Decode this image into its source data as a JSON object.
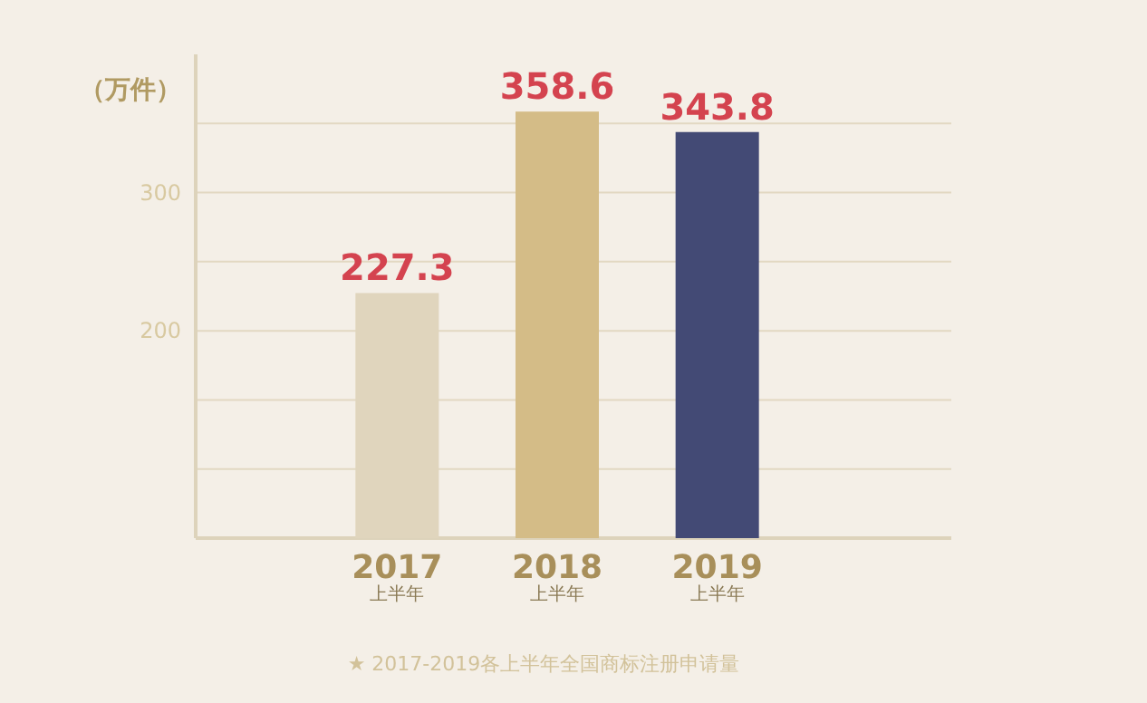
{
  "chart_data": {
    "type": "bar",
    "ylabel": "（万件）",
    "categories": [
      "2017\n上半年",
      "2018\n上半年",
      "2019\n上半年"
    ],
    "values": [
      227.3,
      358.6,
      343.8
    ],
    "colors": [
      "#e0d5bd",
      "#d4bc87",
      "#434a75"
    ],
    "data_labels": true,
    "ylim": [
      50,
      400
    ],
    "yticks": [
      {
        "value": 100,
        "label": null
      },
      {
        "value": 150,
        "label": null
      },
      200,
      {
        "value": 250,
        "label": null
      },
      300,
      {
        "value": 350,
        "label": null
      }
    ],
    "grid": "y",
    "annotations": [
      "★  2017-2019各上半年全国商标注册申请量"
    ]
  }
}
